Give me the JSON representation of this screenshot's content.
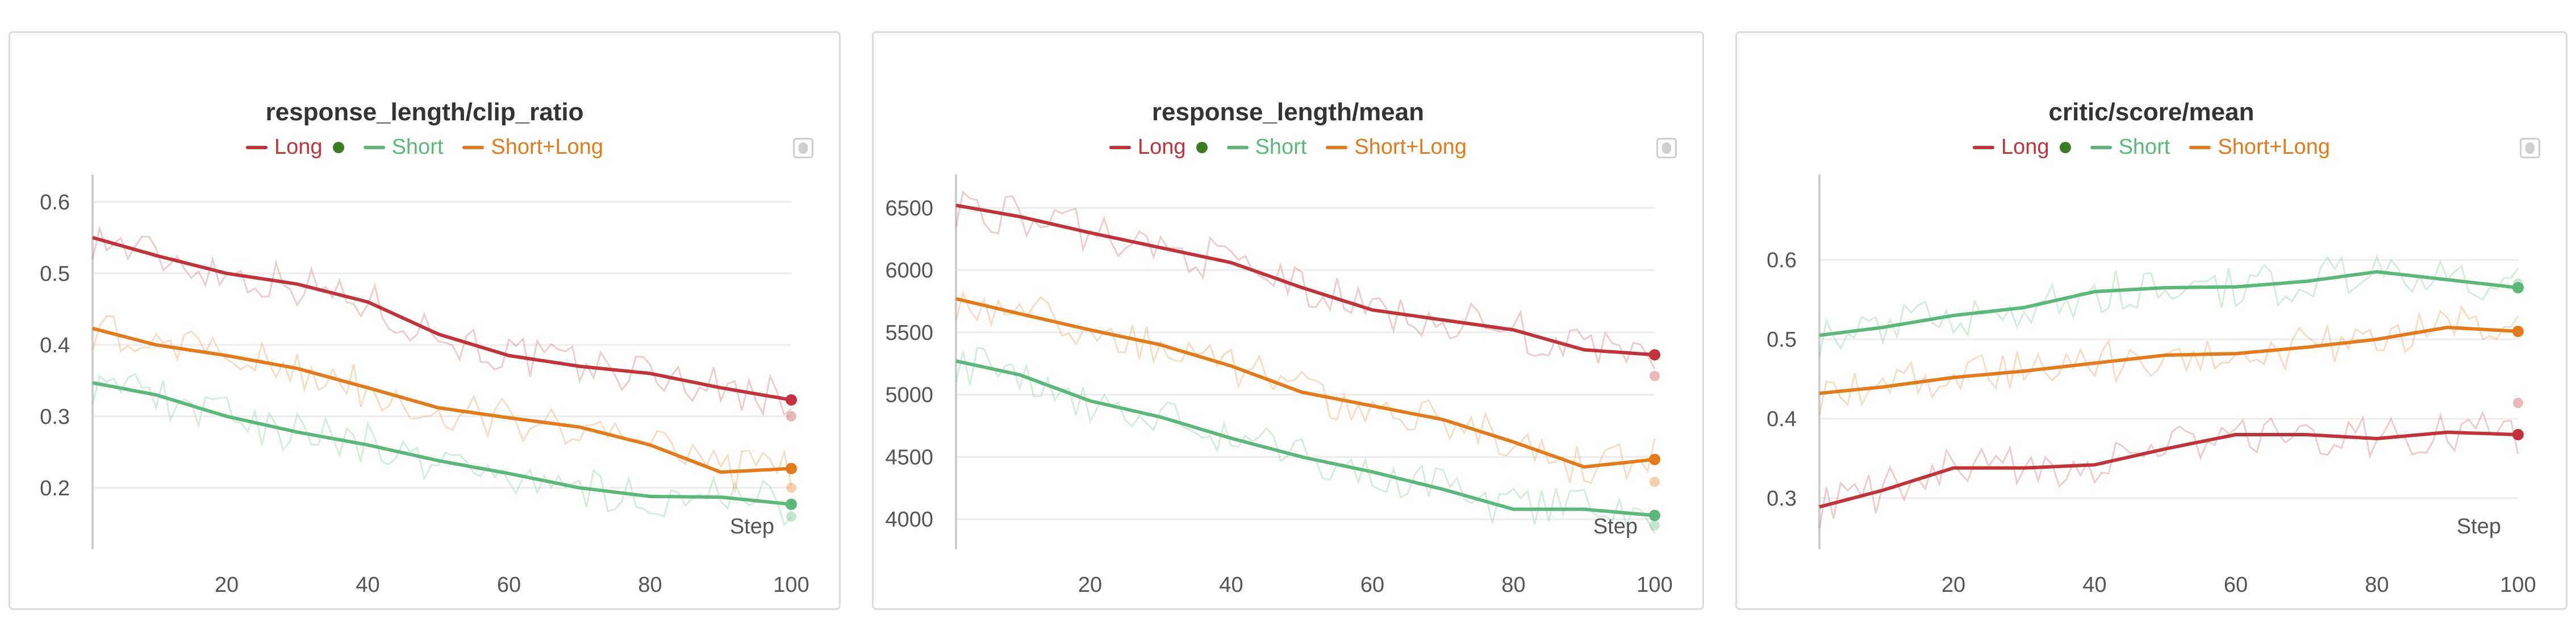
{
  "colors": {
    "long": "#c0333a",
    "short": "#5cb87a",
    "shortlong": "#e37a1c",
    "long_dot": "#3a7d22",
    "grid": "#eeeeee"
  },
  "legend": {
    "long": "Long",
    "short": "Short",
    "shortlong": "Short+Long"
  },
  "step_label": "Step",
  "chart_data": [
    {
      "type": "line",
      "title": "response_length/clip_ratio",
      "xlabel": "Step",
      "xlim": [
        1,
        100
      ],
      "ylim": [
        0.13,
        0.63
      ],
      "xticks": [
        20,
        40,
        60,
        80,
        100
      ],
      "yticks": [
        0.2,
        0.3,
        0.4,
        0.5,
        0.6
      ],
      "ytick_labels": [
        "0.2",
        "0.3",
        "0.4",
        "0.5",
        "0.6"
      ],
      "legend_position": "top-center",
      "series": [
        {
          "name": "Long",
          "key": "long",
          "smoothed": [
            [
              1,
              0.55
            ],
            [
              10,
              0.525
            ],
            [
              20,
              0.5
            ],
            [
              30,
              0.485
            ],
            [
              40,
              0.46
            ],
            [
              50,
              0.415
            ],
            [
              60,
              0.385
            ],
            [
              70,
              0.37
            ],
            [
              80,
              0.36
            ],
            [
              90,
              0.34
            ],
            [
              100,
              0.323
            ]
          ],
          "raw_end": 0.3
        },
        {
          "name": "Short",
          "key": "short",
          "smoothed": [
            [
              1,
              0.347
            ],
            [
              10,
              0.33
            ],
            [
              20,
              0.3
            ],
            [
              30,
              0.278
            ],
            [
              40,
              0.26
            ],
            [
              50,
              0.238
            ],
            [
              60,
              0.22
            ],
            [
              70,
              0.2
            ],
            [
              80,
              0.188
            ],
            [
              90,
              0.187
            ],
            [
              100,
              0.177
            ]
          ],
          "raw_end": 0.16
        },
        {
          "name": "Short+Long",
          "key": "shortlong",
          "smoothed": [
            [
              1,
              0.423
            ],
            [
              10,
              0.4
            ],
            [
              20,
              0.385
            ],
            [
              30,
              0.367
            ],
            [
              40,
              0.34
            ],
            [
              50,
              0.312
            ],
            [
              60,
              0.298
            ],
            [
              70,
              0.285
            ],
            [
              80,
              0.26
            ],
            [
              90,
              0.222
            ],
            [
              100,
              0.227
            ]
          ],
          "raw_end": 0.2
        }
      ]
    },
    {
      "type": "line",
      "title": "response_length/mean",
      "xlabel": "Step",
      "xlim": [
        1,
        100
      ],
      "ylim": [
        3850,
        6720
      ],
      "xticks": [
        20,
        40,
        60,
        80,
        100
      ],
      "yticks": [
        4000,
        4500,
        5000,
        5500,
        6000,
        6500
      ],
      "ytick_labels": [
        "4000",
        "4500",
        "5000",
        "5500",
        "6000",
        "6500"
      ],
      "legend_position": "top-center",
      "series": [
        {
          "name": "Long",
          "key": "long",
          "smoothed": [
            [
              1,
              6520
            ],
            [
              10,
              6430
            ],
            [
              20,
              6300
            ],
            [
              30,
              6180
            ],
            [
              40,
              6060
            ],
            [
              50,
              5860
            ],
            [
              60,
              5680
            ],
            [
              70,
              5600
            ],
            [
              80,
              5520
            ],
            [
              90,
              5360
            ],
            [
              100,
              5320
            ]
          ],
          "raw_end": 5150
        },
        {
          "name": "Short",
          "key": "short",
          "smoothed": [
            [
              1,
              5270
            ],
            [
              10,
              5160
            ],
            [
              20,
              4950
            ],
            [
              30,
              4820
            ],
            [
              40,
              4650
            ],
            [
              50,
              4500
            ],
            [
              60,
              4380
            ],
            [
              70,
              4240
            ],
            [
              80,
              4080
            ],
            [
              90,
              4080
            ],
            [
              100,
              4030
            ]
          ],
          "raw_end": 3950
        },
        {
          "name": "Short+Long",
          "key": "shortlong",
          "smoothed": [
            [
              1,
              5770
            ],
            [
              10,
              5650
            ],
            [
              20,
              5520
            ],
            [
              30,
              5400
            ],
            [
              40,
              5230
            ],
            [
              50,
              5020
            ],
            [
              60,
              4910
            ],
            [
              70,
              4800
            ],
            [
              80,
              4620
            ],
            [
              90,
              4420
            ],
            [
              100,
              4480
            ]
          ],
          "raw_end": 4300
        }
      ]
    },
    {
      "type": "line",
      "title": "critic/score/mean",
      "xlabel": "Step",
      "xlim": [
        1,
        100
      ],
      "ylim": [
        0.25,
        0.7
      ],
      "xticks": [
        20,
        40,
        60,
        80,
        100
      ],
      "yticks": [
        0.3,
        0.4,
        0.5,
        0.6
      ],
      "ytick_labels": [
        "0.3",
        "0.4",
        "0.5",
        "0.6"
      ],
      "legend_position": "top-center",
      "series": [
        {
          "name": "Long",
          "key": "long",
          "smoothed": [
            [
              1,
              0.289
            ],
            [
              10,
              0.31
            ],
            [
              20,
              0.338
            ],
            [
              30,
              0.338
            ],
            [
              40,
              0.342
            ],
            [
              50,
              0.362
            ],
            [
              60,
              0.38
            ],
            [
              70,
              0.38
            ],
            [
              80,
              0.375
            ],
            [
              90,
              0.383
            ],
            [
              100,
              0.38
            ]
          ],
          "raw_end": 0.42
        },
        {
          "name": "Short",
          "key": "short",
          "smoothed": [
            [
              1,
              0.505
            ],
            [
              10,
              0.515
            ],
            [
              20,
              0.53
            ],
            [
              30,
              0.54
            ],
            [
              40,
              0.56
            ],
            [
              50,
              0.565
            ],
            [
              60,
              0.566
            ],
            [
              70,
              0.573
            ],
            [
              80,
              0.585
            ],
            [
              90,
              0.575
            ],
            [
              100,
              0.565
            ]
          ],
          "raw_end": 0.57
        },
        {
          "name": "Short+Long",
          "key": "shortlong",
          "smoothed": [
            [
              1,
              0.432
            ],
            [
              10,
              0.44
            ],
            [
              20,
              0.452
            ],
            [
              30,
              0.46
            ],
            [
              40,
              0.47
            ],
            [
              50,
              0.48
            ],
            [
              60,
              0.482
            ],
            [
              70,
              0.49
            ],
            [
              80,
              0.5
            ],
            [
              90,
              0.515
            ],
            [
              100,
              0.51
            ]
          ],
          "raw_end": 0.51
        }
      ]
    }
  ]
}
